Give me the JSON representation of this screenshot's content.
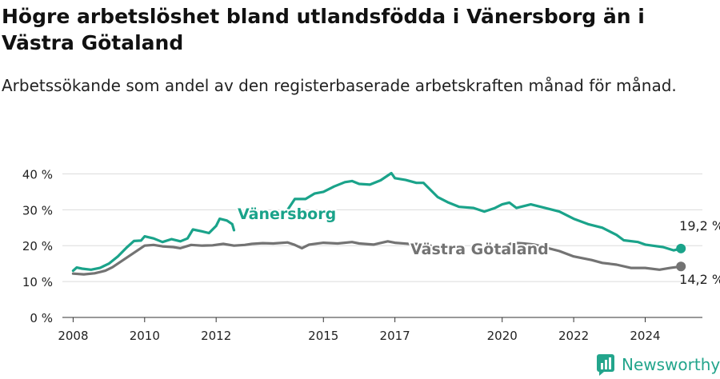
{
  "title": "Högre arbetslöshet bland utlandsfödda i Vänersborg än i Västra Götaland",
  "subtitle": "Arbetssökande som andel av den registerbaserade arbetskraften månad för månad.",
  "brand": {
    "name": "Newsworthy"
  },
  "colors": {
    "vanersborg": "#1aa38a",
    "vastra": "#737373",
    "grid": "#dcdcdc",
    "axis": "#333333"
  },
  "chart_data": {
    "type": "line",
    "ylim": [
      0,
      45
    ],
    "xlim": [
      2007.7,
      2025.6
    ],
    "grid": true,
    "y_ticks": [
      0,
      10,
      20,
      30,
      40
    ],
    "y_tick_labels": [
      "0 %",
      "10 %",
      "20 %",
      "30 %",
      "40 %"
    ],
    "x_ticks": [
      2008,
      2010,
      2012,
      2015,
      2017,
      2020,
      2022,
      2024
    ],
    "x_tick_labels": [
      "2008",
      "2010",
      "2012",
      "2015",
      "2017",
      "2020",
      "2022",
      "2024"
    ],
    "series": [
      {
        "name": "Vänersborg",
        "end_label": "19,2 %",
        "points": [
          [
            2008.0,
            13.0
          ],
          [
            2008.1,
            13.9
          ],
          [
            2008.25,
            13.6
          ],
          [
            2008.5,
            13.3
          ],
          [
            2008.75,
            13.8
          ],
          [
            2009.0,
            15.0
          ],
          [
            2009.25,
            17.0
          ],
          [
            2009.5,
            19.5
          ],
          [
            2009.7,
            21.3
          ],
          [
            2009.9,
            21.4
          ],
          [
            2010.0,
            22.6
          ],
          [
            2010.25,
            22.0
          ],
          [
            2010.5,
            21.0
          ],
          [
            2010.75,
            21.8
          ],
          [
            2011.0,
            21.2
          ],
          [
            2011.2,
            22.0
          ],
          [
            2011.35,
            24.5
          ],
          [
            2011.6,
            24.0
          ],
          [
            2011.8,
            23.5
          ],
          [
            2012.0,
            25.5
          ],
          [
            2012.1,
            27.5
          ],
          [
            2012.3,
            27.0
          ],
          [
            2012.45,
            26.0
          ],
          [
            2012.5,
            24.3
          ],
          [
            2014.0,
            30.0
          ],
          [
            2014.2,
            33.0
          ],
          [
            2014.5,
            33.0
          ],
          [
            2014.75,
            34.5
          ],
          [
            2015.0,
            35.0
          ],
          [
            2015.3,
            36.5
          ],
          [
            2015.6,
            37.7
          ],
          [
            2015.8,
            38.0
          ],
          [
            2016.0,
            37.2
          ],
          [
            2016.3,
            37.0
          ],
          [
            2016.6,
            38.2
          ],
          [
            2016.9,
            40.2
          ],
          [
            2017.0,
            38.8
          ],
          [
            2017.3,
            38.3
          ],
          [
            2017.6,
            37.5
          ],
          [
            2017.8,
            37.5
          ],
          [
            2018.0,
            35.5
          ],
          [
            2018.2,
            33.5
          ],
          [
            2018.5,
            32.0
          ],
          [
            2018.8,
            30.8
          ],
          [
            2019.2,
            30.5
          ],
          [
            2019.5,
            29.5
          ],
          [
            2019.8,
            30.5
          ],
          [
            2020.0,
            31.5
          ],
          [
            2020.2,
            32.0
          ],
          [
            2020.4,
            30.5
          ],
          [
            2020.8,
            31.5
          ],
          [
            2021.2,
            30.5
          ],
          [
            2021.6,
            29.5
          ],
          [
            2022.0,
            27.5
          ],
          [
            2022.4,
            26.0
          ],
          [
            2022.8,
            25.0
          ],
          [
            2023.0,
            24.0
          ],
          [
            2023.2,
            23.0
          ],
          [
            2023.4,
            21.5
          ],
          [
            2023.8,
            21.0
          ],
          [
            2024.0,
            20.3
          ],
          [
            2024.2,
            20.0
          ],
          [
            2024.5,
            19.6
          ],
          [
            2024.8,
            18.7
          ],
          [
            2025.0,
            19.2
          ]
        ]
      },
      {
        "name": "Västra Götaland",
        "end_label": "14,2 %",
        "points": [
          [
            2008.0,
            12.2
          ],
          [
            2008.3,
            12.0
          ],
          [
            2008.6,
            12.3
          ],
          [
            2008.9,
            13.0
          ],
          [
            2009.1,
            14.0
          ],
          [
            2009.4,
            16.0
          ],
          [
            2009.7,
            18.0
          ],
          [
            2010.0,
            20.0
          ],
          [
            2010.25,
            20.2
          ],
          [
            2010.5,
            19.8
          ],
          [
            2010.8,
            19.6
          ],
          [
            2011.0,
            19.3
          ],
          [
            2011.3,
            20.2
          ],
          [
            2011.6,
            20.0
          ],
          [
            2011.9,
            20.1
          ],
          [
            2012.2,
            20.5
          ],
          [
            2012.5,
            20.0
          ],
          [
            2012.8,
            20.2
          ],
          [
            2013.0,
            20.5
          ],
          [
            2013.3,
            20.7
          ],
          [
            2013.6,
            20.6
          ],
          [
            2014.0,
            20.9
          ],
          [
            2014.2,
            20.2
          ],
          [
            2014.4,
            19.3
          ],
          [
            2014.6,
            20.3
          ],
          [
            2015.0,
            20.8
          ],
          [
            2015.4,
            20.6
          ],
          [
            2015.8,
            21.0
          ],
          [
            2016.0,
            20.6
          ],
          [
            2016.4,
            20.3
          ],
          [
            2016.8,
            21.2
          ],
          [
            2017.0,
            20.8
          ],
          [
            2017.4,
            20.5
          ],
          [
            2017.8,
            20.4
          ],
          [
            2018.0,
            20.0
          ],
          [
            2020.0,
            19.5
          ],
          [
            2020.3,
            20.8
          ],
          [
            2020.6,
            20.6
          ],
          [
            2020.9,
            20.3
          ],
          [
            2021.6,
            18.5
          ],
          [
            2022.0,
            17.0
          ],
          [
            2022.5,
            16.0
          ],
          [
            2022.8,
            15.2
          ],
          [
            2023.2,
            14.7
          ],
          [
            2023.6,
            13.8
          ],
          [
            2024.0,
            13.8
          ],
          [
            2024.4,
            13.3
          ],
          [
            2024.7,
            13.8
          ],
          [
            2025.0,
            14.2
          ]
        ]
      }
    ]
  }
}
